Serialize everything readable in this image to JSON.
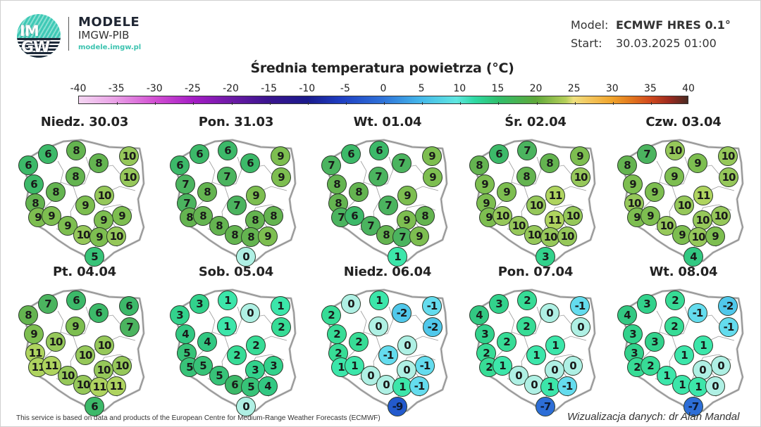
{
  "header": {
    "logo_text_top": "IM",
    "logo_text_bottom": "GW",
    "brand_title": "MODELE",
    "brand_subtitle": "IMGW-PIB",
    "brand_url": "modele.imgw.pl",
    "model_label": "Model:",
    "model_value": "ECMWF HRES 0.1°",
    "start_label": "Start:",
    "start_value": "30.03.2025 01:00"
  },
  "title": "Średnia temperatura powietrza (°C)",
  "colorbar": {
    "ticks": [
      "-40",
      "-35",
      "-30",
      "-25",
      "-20",
      "-15",
      "-10",
      "-5",
      "0",
      "5",
      "10",
      "15",
      "20",
      "25",
      "30",
      "35",
      "40"
    ],
    "min": -40,
    "max": 40
  },
  "chart_data": {
    "type": "table",
    "title": "Średnia temperatura powietrza (°C)",
    "model": "ECMWF HRES 0.1°",
    "start": "30.03.2025 01:00",
    "station_order": [
      "NW-coast-1",
      "W-coast",
      "N-center",
      "NE-1",
      "N-east-2",
      "W-1",
      "center-north",
      "NE-2",
      "W-2",
      "W-center",
      "center-east",
      "W-3",
      "center",
      "SW-1",
      "E-center",
      "SW-2",
      "E-south",
      "S-1",
      "S-2",
      "SE",
      "S-mountain"
    ],
    "days": [
      {
        "label": "Niedz. 30.03",
        "values": [
          6,
          6,
          8,
          8,
          10,
          6,
          8,
          10,
          8,
          8,
          10,
          9,
          9,
          9,
          9,
          9,
          9,
          10,
          9,
          10,
          5
        ]
      },
      {
        "label": "Pon. 31.03",
        "values": [
          6,
          6,
          6,
          6,
          9,
          7,
          7,
          9,
          7,
          8,
          9,
          8,
          7,
          8,
          8,
          8,
          8,
          8,
          8,
          9,
          0
        ]
      },
      {
        "label": "Wt. 01.04",
        "values": [
          6,
          7,
          6,
          7,
          9,
          8,
          7,
          9,
          8,
          8,
          9,
          7,
          7,
          6,
          8,
          7,
          9,
          8,
          7,
          9,
          1
        ]
      },
      {
        "label": "Śr. 02.04",
        "values": [
          6,
          8,
          7,
          8,
          9,
          9,
          8,
          10,
          9,
          9,
          11,
          9,
          10,
          10,
          10,
          10,
          11,
          10,
          10,
          10,
          3
        ]
      },
      {
        "label": "Czw. 03.04",
        "values": [
          7,
          8,
          10,
          9,
          10,
          9,
          9,
          10,
          10,
          9,
          11,
          9,
          10,
          9,
          10,
          10,
          10,
          9,
          10,
          9,
          4
        ]
      },
      {
        "label": "Pt. 04.04",
        "values": [
          7,
          8,
          6,
          6,
          6,
          9,
          9,
          7,
          11,
          10,
          10,
          11,
          10,
          11,
          10,
          10,
          10,
          10,
          11,
          11,
          6
        ]
      },
      {
        "label": "Sob. 05.04",
        "values": [
          3,
          3,
          1,
          0,
          1,
          4,
          1,
          2,
          5,
          4,
          2,
          5,
          2,
          5,
          3,
          5,
          3,
          6,
          5,
          4,
          0
        ]
      },
      {
        "label": "Niedz. 06.04",
        "values": [
          0,
          2,
          1,
          -2,
          -1,
          2,
          0,
          -2,
          2,
          2,
          0,
          1,
          -1,
          1,
          -1,
          0,
          0,
          0,
          1,
          -1,
          -9
        ]
      },
      {
        "label": "Pon. 07.04",
        "values": [
          3,
          4,
          2,
          0,
          -1,
          3,
          2,
          0,
          2,
          2,
          1,
          2,
          1,
          1,
          0,
          0,
          0,
          0,
          1,
          -1,
          -7
        ]
      },
      {
        "label": "Wt. 08.04",
        "values": [
          3,
          4,
          2,
          -1,
          -2,
          3,
          2,
          -1,
          3,
          3,
          1,
          2,
          1,
          2,
          0,
          1,
          0,
          1,
          1,
          0,
          -7
        ]
      }
    ]
  },
  "footer": {
    "left": "This service is based on data and products of the European Centre for Medium-Range Weather Forecasts (ECMWF)",
    "right": "Wizualizacja danych: dr Alan Mandal"
  }
}
